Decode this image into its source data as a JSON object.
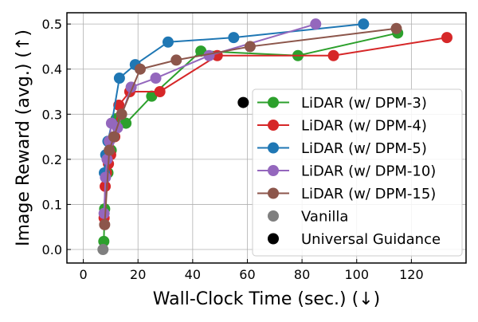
{
  "chart_data": {
    "type": "line",
    "title": "",
    "xlabel": "Wall-Clock Time (sec.) (↓)",
    "ylabel": "Image Reward (avg.) (↑)",
    "xlim": [
      -6,
      140
    ],
    "ylim": [
      -0.03,
      0.525
    ],
    "xticks": [
      0,
      20,
      40,
      60,
      80,
      100,
      120
    ],
    "yticks": [
      0.0,
      0.1,
      0.2,
      0.3,
      0.4,
      0.5
    ],
    "ytick_labels": [
      "0.0",
      "0.1",
      "0.2",
      "0.3",
      "0.4",
      "0.5"
    ],
    "grid": true,
    "legend_position": "lower-right",
    "series": [
      {
        "name": "LiDAR (w/ DPM-3)",
        "color": "#2ca02c",
        "x": [
          7.5,
          7.8,
          8.3,
          9.0,
          10.2,
          12.0,
          15.6,
          25.0,
          43.0,
          78.5,
          115.0
        ],
        "y": [
          0.018,
          0.09,
          0.17,
          0.17,
          0.22,
          0.29,
          0.28,
          0.34,
          0.44,
          0.43,
          0.48
        ]
      },
      {
        "name": "LiDAR (w/ DPM-4)",
        "color": "#d62728",
        "x": [
          7.6,
          8.0,
          8.5,
          9.2,
          10.0,
          11.5,
          13.0,
          17.0,
          28.0,
          49.0,
          91.5,
          133.0
        ],
        "y": [
          0.07,
          0.14,
          0.17,
          0.19,
          0.21,
          0.25,
          0.32,
          0.35,
          0.35,
          0.43,
          0.43,
          0.47
        ]
      },
      {
        "name": "LiDAR (w/ DPM-5)",
        "color": "#1f77b4",
        "x": [
          7.7,
          8.2,
          9.0,
          10.4,
          13.2,
          19.0,
          31.0,
          55.0,
          102.5
        ],
        "y": [
          0.17,
          0.21,
          0.24,
          0.28,
          0.38,
          0.41,
          0.46,
          0.47,
          0.5
        ]
      },
      {
        "name": "LiDAR (w/ DPM-10)",
        "color": "#9467bd",
        "x": [
          7.6,
          8.1,
          8.7,
          9.5,
          10.3,
          12.5,
          17.5,
          26.5,
          46.0,
          85.0
        ],
        "y": [
          0.08,
          0.16,
          0.2,
          0.24,
          0.28,
          0.27,
          0.36,
          0.38,
          0.43,
          0.5
        ]
      },
      {
        "name": "LiDAR (w/ DPM-15)",
        "color": "#8c564b",
        "x": [
          7.8,
          9.5,
          11.2,
          14.0,
          20.8,
          34.0,
          61.0,
          114.5
        ],
        "y": [
          0.055,
          0.22,
          0.25,
          0.3,
          0.4,
          0.42,
          0.45,
          0.49
        ]
      },
      {
        "name": "Vanilla",
        "color": "#7f7f7f",
        "marker_only": true,
        "x": [
          7.2
        ],
        "y": [
          0.0
        ]
      },
      {
        "name": "Universal Guidance",
        "color": "#000000",
        "marker_only": true,
        "x": [
          58.5
        ],
        "y": [
          0.326
        ]
      }
    ]
  }
}
